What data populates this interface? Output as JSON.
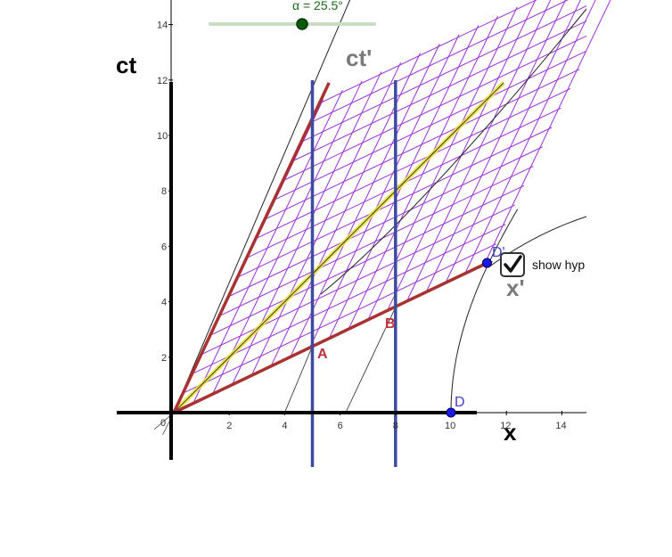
{
  "slider": {
    "label": "α = 25.5°",
    "value_deg": 25.5
  },
  "checkbox": {
    "label": "show hyp",
    "checked": true
  },
  "axes": {
    "x_name": "x",
    "y_name": "ct",
    "x_prime_name": "x'",
    "ct_prime_name": "ct'",
    "origin_label": "0",
    "x_ticks": [
      "2",
      "4",
      "6",
      "8",
      "10",
      "12",
      "14"
    ],
    "y_ticks": [
      "2",
      "4",
      "6",
      "8",
      "10",
      "12",
      "14"
    ]
  },
  "points": {
    "D": {
      "label": "D",
      "x": 10,
      "ct": 0
    },
    "D_prime": {
      "label": "D'",
      "x": 11.3,
      "ct": 5.4
    }
  },
  "events": {
    "A": {
      "label": "A",
      "x": 5,
      "ct": 2.4
    },
    "B": {
      "label": "B",
      "x": 8,
      "ct": 3.8
    }
  },
  "worldlines": [
    {
      "x": 5
    },
    {
      "x": 8
    }
  ],
  "colors": {
    "grid": "#9b30d6",
    "worldline": "#3c4ba0",
    "primed_axis": "#a83232",
    "light_line": "#e8e03a",
    "point": "#1a1ae0",
    "slider_knob": "#0b5a0b"
  }
}
